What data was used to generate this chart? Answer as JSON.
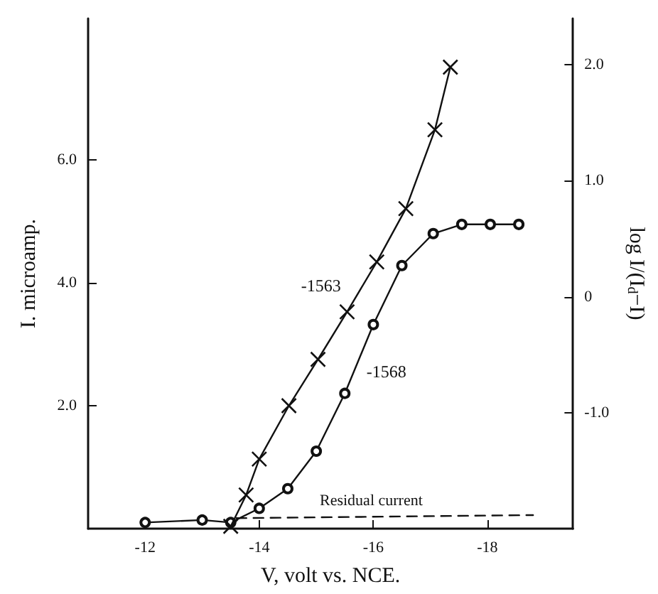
{
  "chart_data": {
    "type": "line",
    "xlabel": "V, volt vs. NCE.",
    "ylabel": "I. microamp.",
    "y2label": "log I/(I$_{d}$−I)",
    "xlim": [
      -11.0,
      -19.5
    ],
    "xticks": [
      -12,
      -14,
      -16,
      -18
    ],
    "ylim": [
      0,
      8.3
    ],
    "yticks": [
      {
        "value": 2,
        "label": "2.0"
      },
      {
        "value": 4,
        "label": "4.0"
      },
      {
        "value": 6,
        "label": "6.0"
      }
    ],
    "y2lim": [
      -2.0,
      2.4
    ],
    "y2ticks": [
      {
        "value": -1,
        "label": "-1.0"
      },
      0,
      {
        "value": 1,
        "label": "1.0"
      },
      {
        "value": 2,
        "label": "2.0"
      }
    ],
    "grid": false,
    "series": [
      {
        "color": "#111111",
        "marker": "circle",
        "line_style": "solid",
        "x": [
          -12.0,
          -13.0,
          -13.5,
          -14.0,
          -14.5,
          -15.0,
          -15.5,
          -16.0,
          -16.5,
          -17.05,
          -17.55,
          -18.05,
          -18.55
        ],
        "values": [
          0.1,
          0.14,
          0.1,
          0.33,
          0.65,
          1.26,
          2.2,
          3.32,
          4.28,
          4.8,
          4.95,
          4.95,
          4.95
        ]
      },
      {
        "color": "#111111",
        "marker": "cross",
        "line_style": "solid",
        "axis": "y2",
        "x": [
          -13.5,
          -13.77,
          -14.0,
          -14.52,
          -15.03,
          -15.54,
          -16.06,
          -16.57,
          -17.08,
          -17.35
        ],
        "values": [
          -1.98,
          -1.71,
          -1.4,
          -0.94,
          -0.54,
          -0.13,
          0.3,
          0.76,
          1.44,
          1.98
        ]
      },
      {
        "color": "#111111",
        "marker": "none",
        "line_style": "dashed",
        "x": [
          -13.6,
          -18.8
        ],
        "values": [
          0.17,
          0.22
        ]
      }
    ],
    "annotations": [
      {
        "text": "-1563",
        "x": -15.63,
        "y": 3.81
      },
      {
        "text": "-1568",
        "x": -15.68,
        "y": 2.55
      },
      "Residual current"
    ]
  }
}
